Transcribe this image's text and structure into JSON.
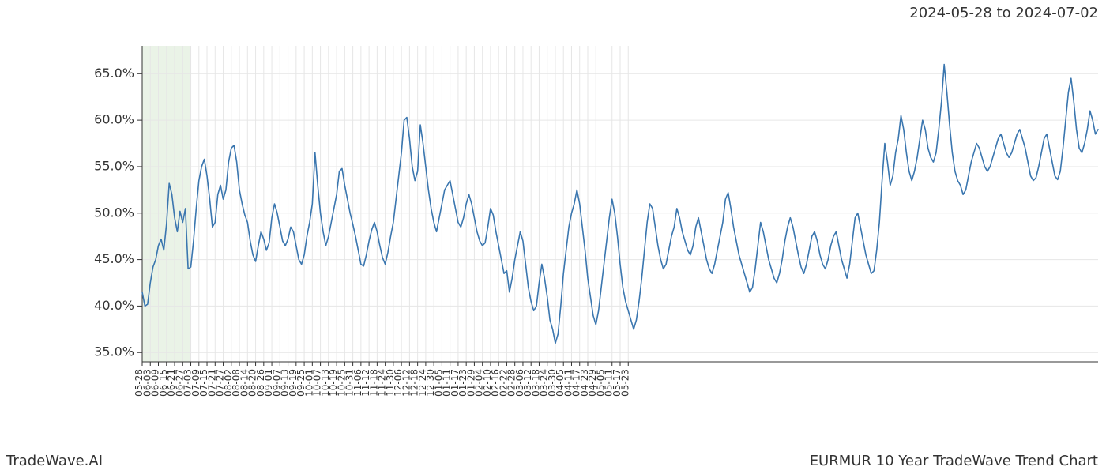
{
  "header": {
    "date_range": "2024-05-28 to 2024-07-02"
  },
  "footer": {
    "brand": "TradeWave.AI",
    "caption": "EURMUR 10 Year TradeWave Trend Chart"
  },
  "chart": {
    "type": "line",
    "background_color": "#ffffff",
    "grid_color": "#e6e6e6",
    "axis_color": "#333333",
    "line_color": "#3a76af",
    "line_width": 1.6,
    "highlight": {
      "fill": "#d9ead3",
      "opacity": 0.55,
      "start_index": 0,
      "end_index": 18
    },
    "ylim": [
      34,
      68
    ],
    "ytick_step": 5,
    "ytick_min": 35,
    "ytick_max": 65,
    "y_suffix": ".0%",
    "label_fontsize_y": 16,
    "label_fontsize_x": 12,
    "x_labels": [
      "05-28",
      "06-03",
      "06-09",
      "06-15",
      "06-21",
      "06-27",
      "07-03",
      "07-09",
      "07-15",
      "07-21",
      "07-27",
      "08-02",
      "08-08",
      "08-14",
      "08-20",
      "08-26",
      "09-01",
      "09-07",
      "09-13",
      "09-19",
      "09-25",
      "10-01",
      "10-07",
      "10-13",
      "10-19",
      "10-25",
      "10-31",
      "11-06",
      "11-12",
      "11-18",
      "11-24",
      "11-30",
      "12-06",
      "12-12",
      "12-18",
      "12-24",
      "12-30",
      "01-05",
      "01-11",
      "01-17",
      "01-23",
      "01-29",
      "02-04",
      "02-10",
      "02-16",
      "02-22",
      "02-28",
      "03-06",
      "03-12",
      "03-18",
      "03-24",
      "03-30",
      "04-05",
      "04-11",
      "04-17",
      "04-23",
      "04-29",
      "05-05",
      "05-11",
      "05-17",
      "05-23"
    ],
    "x_label_interval_points": 3,
    "series": [
      {
        "name": "EURMUR trend",
        "color": "#3a76af",
        "values": [
          41.5,
          40.0,
          40.2,
          42.5,
          44.2,
          45.0,
          46.5,
          47.2,
          46.0,
          48.8,
          53.2,
          52.0,
          49.5,
          48.0,
          50.2,
          49.0,
          50.5,
          44.0,
          44.2,
          47.0,
          50.5,
          53.5,
          55.0,
          55.8,
          54.0,
          51.5,
          48.5,
          49.0,
          52.0,
          53.0,
          51.5,
          52.5,
          55.5,
          57.0,
          57.3,
          55.5,
          52.5,
          51.0,
          49.8,
          49.0,
          47.0,
          45.5,
          44.8,
          46.5,
          48.0,
          47.2,
          46.0,
          46.8,
          49.5,
          51.0,
          50.0,
          48.5,
          47.0,
          46.5,
          47.2,
          48.5,
          48.0,
          46.5,
          45.0,
          44.5,
          45.5,
          47.5,
          49.0,
          51.0,
          56.5,
          53.0,
          50.0,
          48.0,
          46.5,
          47.5,
          49.0,
          50.5,
          52.0,
          54.5,
          54.8,
          53.0,
          51.5,
          50.0,
          48.8,
          47.5,
          46.0,
          44.5,
          44.3,
          45.5,
          47.0,
          48.2,
          49.0,
          48.0,
          46.5,
          45.2,
          44.5,
          45.8,
          47.5,
          49.0,
          51.5,
          54.0,
          56.5,
          60.0,
          60.3,
          58.0,
          55.0,
          53.5,
          54.5,
          59.5,
          57.5,
          55.0,
          52.5,
          50.5,
          49.0,
          48.0,
          49.5,
          51.0,
          52.5,
          53.0,
          53.5,
          52.0,
          50.5,
          49.0,
          48.5,
          49.5,
          51.0,
          52.0,
          51.0,
          49.5,
          48.0,
          47.0,
          46.5,
          46.8,
          48.5,
          50.5,
          49.8,
          48.0,
          46.5,
          45.0,
          43.5,
          43.8,
          41.5,
          43.0,
          45.0,
          46.5,
          48.0,
          47.0,
          44.5,
          42.0,
          40.5,
          39.5,
          40.0,
          42.5,
          44.5,
          43.0,
          41.0,
          38.5,
          37.5,
          36.0,
          37.0,
          40.0,
          43.5,
          46.0,
          48.5,
          50.0,
          51.0,
          52.5,
          51.0,
          48.5,
          46.0,
          43.0,
          41.0,
          39.0,
          38.0,
          39.5,
          42.0,
          44.5,
          47.0,
          49.5,
          51.5,
          50.0,
          47.5,
          44.5,
          42.0,
          40.5,
          39.5,
          38.5,
          37.5,
          38.5,
          40.5,
          43.0,
          46.0,
          49.0,
          51.0,
          50.5,
          48.5,
          46.5,
          45.0,
          44.0,
          44.5,
          46.0,
          47.5,
          48.5,
          50.5,
          49.5,
          48.0,
          47.0,
          46.0,
          45.5,
          46.5,
          48.5,
          49.5,
          48.0,
          46.5,
          45.0,
          44.0,
          43.5,
          44.5,
          46.0,
          47.5,
          49.0,
          51.5,
          52.2,
          50.5,
          48.5,
          47.0,
          45.5,
          44.5,
          43.5,
          42.5,
          41.5,
          42.0,
          44.0,
          46.5,
          49.0,
          48.0,
          46.5,
          45.0,
          44.0,
          43.0,
          42.5,
          43.5,
          45.0,
          47.0,
          48.5,
          49.5,
          48.5,
          47.0,
          45.5,
          44.2,
          43.5,
          44.5,
          46.0,
          47.5,
          48.0,
          47.0,
          45.5,
          44.5,
          44.0,
          45.0,
          46.5,
          47.5,
          48.0,
          46.5,
          45.0,
          44.0,
          43.0,
          44.5,
          47.0,
          49.5,
          50.0,
          48.5,
          47.0,
          45.5,
          44.5,
          43.5,
          43.8,
          46.0,
          49.0,
          53.5,
          57.5,
          55.5,
          53.0,
          54.0,
          56.5,
          58.0,
          60.5,
          59.0,
          56.5,
          54.5,
          53.5,
          54.5,
          56.0,
          58.0,
          60.0,
          59.0,
          57.0,
          56.0,
          55.5,
          56.5,
          59.0,
          62.0,
          66.0,
          63.0,
          59.5,
          56.5,
          54.5,
          53.5,
          53.0,
          52.0,
          52.5,
          54.0,
          55.5,
          56.5,
          57.5,
          57.0,
          56.0,
          55.0,
          54.5,
          55.0,
          56.0,
          57.0,
          58.0,
          58.5,
          57.5,
          56.5,
          56.0,
          56.5,
          57.5,
          58.5,
          59.0,
          58.0,
          57.0,
          55.5,
          54.0,
          53.5,
          53.8,
          55.0,
          56.5,
          58.0,
          58.5,
          57.0,
          55.5,
          54.0,
          53.6,
          54.5,
          57.0,
          60.0,
          63.0,
          64.5,
          62.0,
          59.0,
          57.0,
          56.5,
          57.5,
          59.0,
          61.0,
          60.0,
          58.5,
          59.0
        ]
      }
    ]
  }
}
